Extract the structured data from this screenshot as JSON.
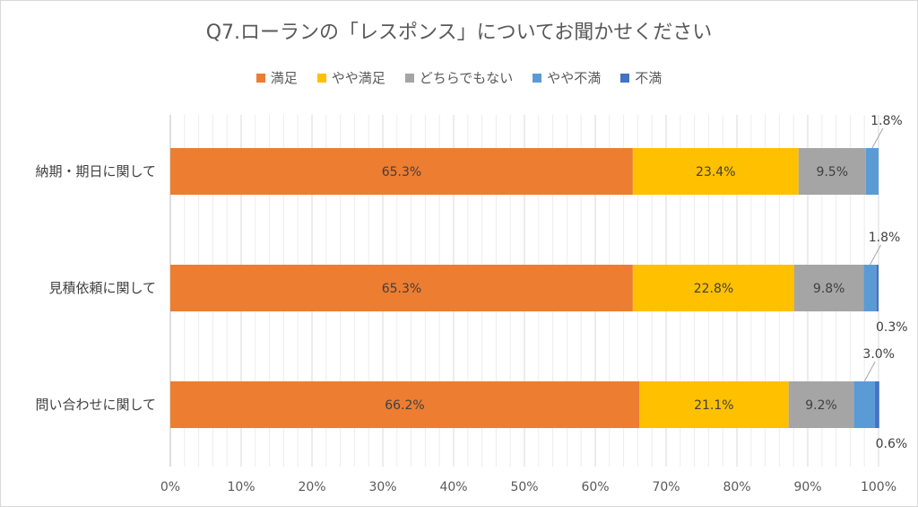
{
  "chart_data": {
    "type": "bar",
    "orientation": "horizontal",
    "stacked": true,
    "title": "Q7.ローランの「レスポンス」についてお聞かせください",
    "categories": [
      "納期・期日に関して",
      "見積依頼に関して",
      "問い合わせに関して"
    ],
    "series": [
      {
        "name": "満足",
        "color": "#ed7d31",
        "values": [
          65.3,
          65.3,
          66.2
        ],
        "labels": [
          "65.3%",
          "65.3%",
          "66.2%"
        ]
      },
      {
        "name": "やや満足",
        "color": "#ffc000",
        "values": [
          23.4,
          22.8,
          21.1
        ],
        "labels": [
          "23.4%",
          "22.8%",
          "21.1%"
        ]
      },
      {
        "name": "どちらでもない",
        "color": "#a5a5a5",
        "values": [
          9.5,
          9.8,
          9.2
        ],
        "labels": [
          "9.5%",
          "9.8%",
          "9.2%"
        ]
      },
      {
        "name": "やや不満",
        "color": "#5b9bd5",
        "values": [
          1.8,
          1.8,
          3.0
        ],
        "labels": [
          "1.8%",
          "1.8%",
          "3.0%"
        ]
      },
      {
        "name": "不満",
        "color": "#4472c4",
        "values": [
          0,
          0.3,
          0.6
        ],
        "labels": [
          "",
          "0.3%",
          "0.6%"
        ]
      }
    ],
    "xlim": [
      0,
      100
    ],
    "x_ticks": [
      "0%",
      "10%",
      "20%",
      "30%",
      "40%",
      "50%",
      "60%",
      "70%",
      "80%",
      "90%",
      "100%"
    ],
    "grid": true,
    "legend_position": "top"
  }
}
